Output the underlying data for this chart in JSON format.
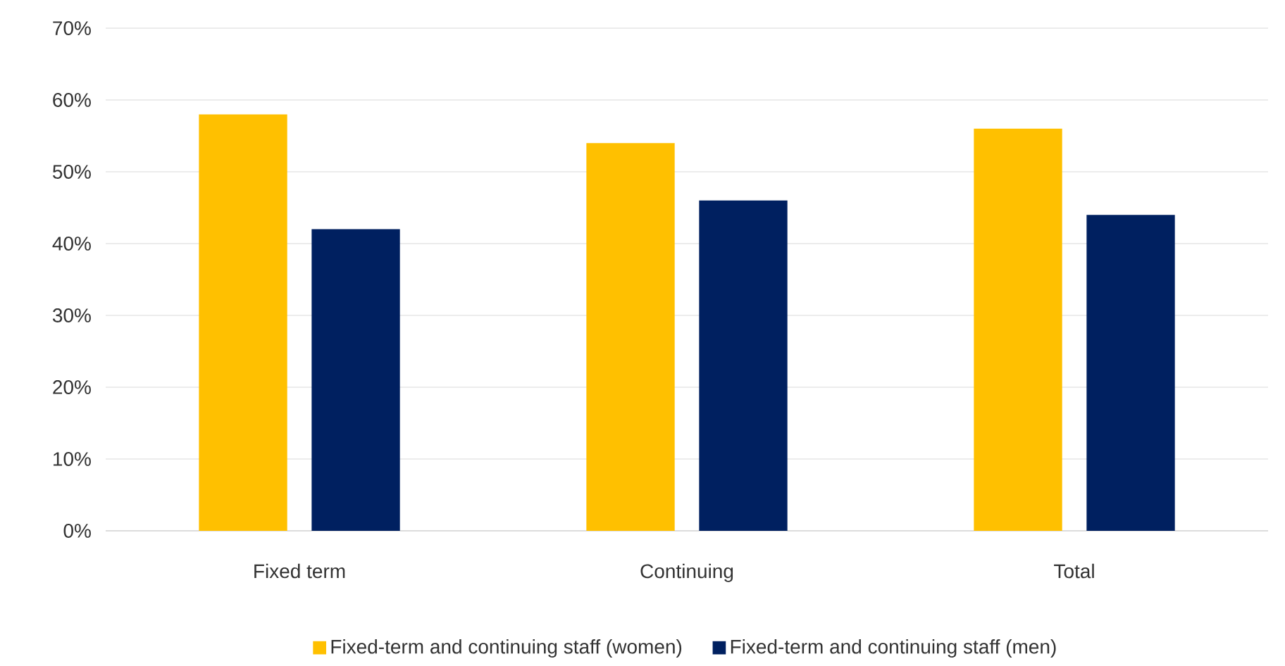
{
  "chart_data": {
    "type": "bar",
    "categories": [
      "Fixed term",
      "Continuing",
      "Total"
    ],
    "series": [
      {
        "name": "Fixed-term and continuing staff  (women)",
        "color": "#ffc000",
        "values": [
          58,
          54,
          56
        ]
      },
      {
        "name": "Fixed-term and continuing staff  (men)",
        "color": "#002060",
        "values": [
          42,
          46,
          44
        ]
      }
    ],
    "ylim": [
      0,
      70
    ],
    "yticks": [
      {
        "value": 0,
        "label": "0%"
      },
      {
        "value": 10,
        "label": "10%"
      },
      {
        "value": 20,
        "label": "20%"
      },
      {
        "value": 30,
        "label": "30%"
      },
      {
        "value": 40,
        "label": "40%"
      },
      {
        "value": 50,
        "label": "50%"
      },
      {
        "value": 60,
        "label": "60%"
      },
      {
        "value": 70,
        "label": "70%"
      }
    ],
    "grid": "y",
    "legend": "bottom"
  }
}
